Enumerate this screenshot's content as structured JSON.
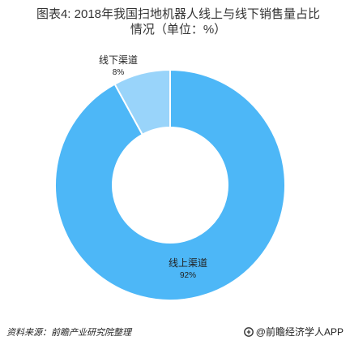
{
  "chart_data": {
    "type": "pie",
    "title": "图表4: 2018年我国扫地机器人线上与线下销售量占比情况（单位：%）",
    "series": [
      {
        "name": "线上渠道",
        "value": 92,
        "value_label": "92%",
        "color": "#4db7f7"
      },
      {
        "name": "线下渠道",
        "value": 8,
        "value_label": "8%",
        "color": "#99d4fa"
      }
    ],
    "donut": true
  },
  "footer": {
    "source": "资料来源：前瞻产业研究院整理",
    "brand": "@前瞻经济学人APP",
    "brand_icon": "qianzhan-logo-icon"
  }
}
